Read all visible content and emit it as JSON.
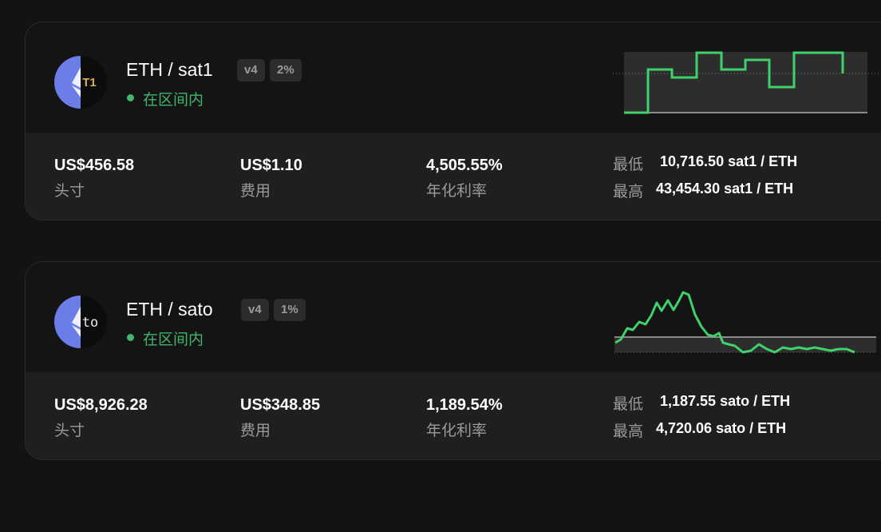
{
  "positions": [
    {
      "icon_text": "T1",
      "pair": "ETH / sat1",
      "version": "v4",
      "fee": "2%",
      "status": "在区间内",
      "position_value": "US$456.58",
      "position_label": "头寸",
      "fees_value": "US$1.10",
      "fees_label": "费用",
      "apr_value": "4,505.55%",
      "apr_label": "年化利率",
      "min_label": "最低",
      "min_value": "10,716.50 sat1 / ETH",
      "max_label": "最高",
      "max_value": "43,454.30 sat1 / ETH"
    },
    {
      "icon_text": "to",
      "pair": "ETH / sato",
      "version": "v4",
      "fee": "1%",
      "status": "在区间内",
      "position_value": "US$8,926.28",
      "position_label": "头寸",
      "fees_value": "US$348.85",
      "fees_label": "费用",
      "apr_value": "1,189.54%",
      "apr_label": "年化利率",
      "min_label": "最低",
      "min_value": "1,187.55 sato / ETH",
      "max_label": "最高",
      "max_value": "4,720.06 sato / ETH"
    }
  ]
}
